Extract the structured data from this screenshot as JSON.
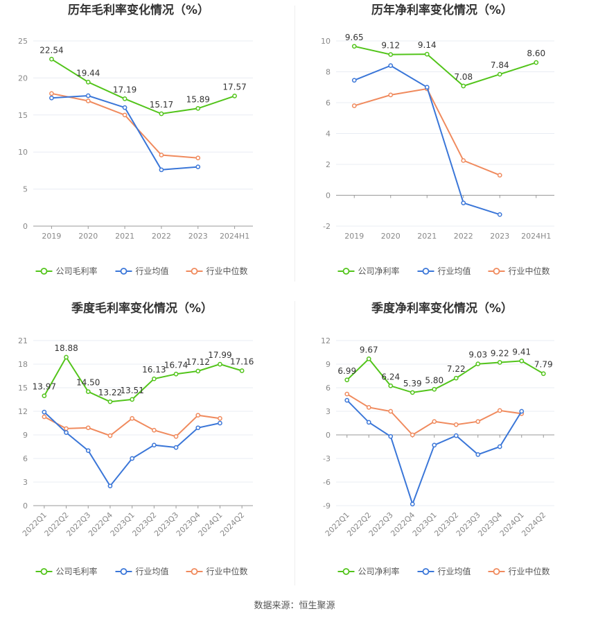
{
  "source_label": "数据来源：恒生聚源",
  "chart_data": [
    {
      "type": "line",
      "title": "历年毛利率变化情况（%）",
      "categories": [
        "2019",
        "2020",
        "2021",
        "2022",
        "2023",
        "2024H1"
      ],
      "ylim": [
        0,
        25
      ],
      "yticks": [
        0,
        5,
        10,
        15,
        20,
        25
      ],
      "grid": true,
      "legend_position": "bottom",
      "series": [
        {
          "name": "公司毛利率",
          "color": "#52c41a",
          "values": [
            22.54,
            19.44,
            17.19,
            15.17,
            15.89,
            17.57
          ],
          "labels": [
            "22.54",
            "19.44",
            "17.19",
            "15.17",
            "15.89",
            "17.57"
          ]
        },
        {
          "name": "行业均值",
          "color": "#3a76d8",
          "values": [
            17.3,
            17.6,
            16.0,
            7.6,
            8.0,
            null
          ]
        },
        {
          "name": "行业中位数",
          "color": "#f08a5d",
          "values": [
            17.9,
            16.9,
            15.0,
            9.6,
            9.2,
            null
          ]
        }
      ]
    },
    {
      "type": "line",
      "title": "历年净利率变化情况（%）",
      "categories": [
        "2019",
        "2020",
        "2021",
        "2022",
        "2023",
        "2024H1"
      ],
      "ylim": [
        -2,
        10
      ],
      "yticks": [
        -2,
        0,
        2,
        4,
        6,
        8,
        10
      ],
      "grid": true,
      "legend_position": "bottom",
      "series": [
        {
          "name": "公司净利率",
          "color": "#52c41a",
          "values": [
            9.65,
            9.12,
            9.14,
            7.08,
            7.84,
            8.6
          ],
          "labels": [
            "9.65",
            "9.12",
            "9.14",
            "7.08",
            "7.84",
            "8.60"
          ]
        },
        {
          "name": "行业均值",
          "color": "#3a76d8",
          "values": [
            7.45,
            8.4,
            7.0,
            -0.5,
            -1.25,
            null
          ]
        },
        {
          "name": "行业中位数",
          "color": "#f08a5d",
          "values": [
            5.8,
            6.5,
            6.9,
            2.25,
            1.3,
            null
          ]
        }
      ]
    },
    {
      "type": "line",
      "title": "季度毛利率变化情况（%）",
      "categories": [
        "2022Q1",
        "2022Q2",
        "2022Q3",
        "2022Q4",
        "2023Q1",
        "2023Q2",
        "2023Q3",
        "2023Q4",
        "2024Q1",
        "2024Q2"
      ],
      "ylim": [
        0,
        21
      ],
      "yticks": [
        0,
        3,
        6,
        9,
        12,
        15,
        18,
        21
      ],
      "grid": true,
      "legend_position": "bottom",
      "series": [
        {
          "name": "公司毛利率",
          "color": "#52c41a",
          "values": [
            13.97,
            18.88,
            14.5,
            13.22,
            13.51,
            16.13,
            16.74,
            17.12,
            17.99,
            17.16
          ],
          "labels": [
            "13.97",
            "18.88",
            "14.50",
            "13.22",
            "13.51",
            "16.13",
            "16.74",
            "17.12",
            "17.99",
            "17.16"
          ]
        },
        {
          "name": "行业均值",
          "color": "#3a76d8",
          "values": [
            11.9,
            9.3,
            7.0,
            2.5,
            6.0,
            7.7,
            7.4,
            9.9,
            10.5,
            null
          ]
        },
        {
          "name": "行业中位数",
          "color": "#f08a5d",
          "values": [
            11.3,
            9.8,
            9.9,
            8.9,
            11.1,
            9.6,
            8.8,
            11.5,
            11.1,
            null
          ]
        }
      ]
    },
    {
      "type": "line",
      "title": "季度净利率变化情况（%）",
      "categories": [
        "2022Q1",
        "2022Q2",
        "2022Q3",
        "2022Q4",
        "2023Q1",
        "2023Q2",
        "2023Q3",
        "2023Q4",
        "2024Q1",
        "2024Q2"
      ],
      "ylim": [
        -9,
        12
      ],
      "yticks": [
        -9,
        -6,
        -3,
        0,
        3,
        6,
        9,
        12
      ],
      "grid": true,
      "legend_position": "bottom",
      "series": [
        {
          "name": "公司净利率",
          "color": "#52c41a",
          "values": [
            6.99,
            9.67,
            6.24,
            5.39,
            5.8,
            7.22,
            9.03,
            9.22,
            9.41,
            7.79
          ],
          "labels": [
            "6.99",
            "9.67",
            "6.24",
            "5.39",
            "5.80",
            "7.22",
            "9.03",
            "9.22",
            "9.41",
            "7.79"
          ]
        },
        {
          "name": "行业均值",
          "color": "#3a76d8",
          "values": [
            4.4,
            1.6,
            -0.2,
            -8.8,
            -1.3,
            -0.1,
            -2.5,
            -1.5,
            3.0,
            null
          ]
        },
        {
          "name": "行业中位数",
          "color": "#f08a5d",
          "values": [
            5.2,
            3.5,
            3.0,
            0.0,
            1.7,
            1.3,
            1.7,
            3.1,
            2.7,
            null
          ]
        }
      ]
    }
  ]
}
